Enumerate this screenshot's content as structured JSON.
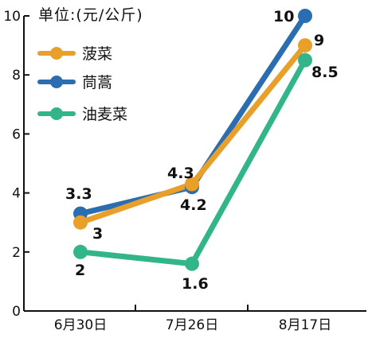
{
  "chart_data": {
    "type": "line",
    "unit_label": "单位:(元/公斤)",
    "categories": [
      "6月30日",
      "7月26日",
      "8月17日"
    ],
    "y_ticks": [
      "0",
      "2",
      "4",
      "6",
      "8",
      "10"
    ],
    "ylim": [
      0,
      10
    ],
    "grid": false,
    "legend_position": "top-left",
    "series": [
      {
        "name": "菠菜",
        "color": "#e8a02a",
        "values": [
          3,
          4.3,
          9
        ],
        "labels": [
          "3",
          "4.3",
          "9"
        ]
      },
      {
        "name": "茼蒿",
        "color": "#2a6db0",
        "values": [
          3.3,
          4.2,
          10
        ],
        "labels": [
          "3.3",
          "4.2",
          "10"
        ]
      },
      {
        "name": "油麦菜",
        "color": "#33b58a",
        "values": [
          2,
          1.6,
          8.5
        ],
        "labels": [
          "2",
          "1.6",
          "8.5"
        ]
      }
    ]
  }
}
